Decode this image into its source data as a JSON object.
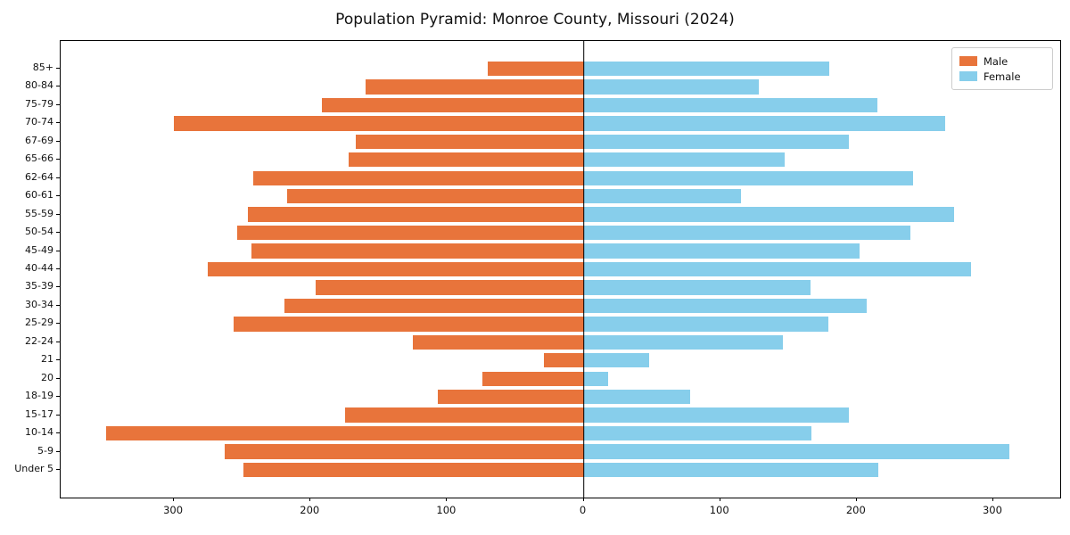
{
  "title": "Population Pyramid: Monroe County, Missouri (2024)",
  "legend": {
    "male_label": "Male",
    "female_label": "Female"
  },
  "colors": {
    "male": "#e8743b",
    "female": "#87ceeb",
    "axis": "#000000"
  },
  "chart_data": {
    "type": "bar",
    "subtype": "population-pyramid",
    "orientation": "horizontal",
    "title": "Population Pyramid: Monroe County, Missouri (2024)",
    "categories": [
      "85+",
      "80-84",
      "75-79",
      "70-74",
      "67-69",
      "65-66",
      "62-64",
      "60-61",
      "55-59",
      "50-54",
      "45-49",
      "40-44",
      "35-39",
      "30-34",
      "25-29",
      "22-24",
      "21",
      "20",
      "18-19",
      "15-17",
      "10-14",
      "5-9",
      "Under 5"
    ],
    "series": [
      {
        "name": "Male",
        "side": "left",
        "color": "#e8743b",
        "values": [
          70,
          160,
          192,
          300,
          167,
          172,
          242,
          217,
          246,
          254,
          243,
          275,
          196,
          219,
          256,
          125,
          29,
          74,
          107,
          175,
          350,
          263,
          249
        ]
      },
      {
        "name": "Female",
        "side": "right",
        "color": "#87ceeb",
        "values": [
          180,
          128,
          215,
          265,
          194,
          147,
          241,
          115,
          271,
          239,
          202,
          284,
          166,
          207,
          179,
          146,
          48,
          18,
          78,
          194,
          167,
          312,
          216
        ]
      }
    ],
    "xlim": [
      -383,
      349
    ],
    "x_ticks": [
      -300,
      -200,
      -100,
      0,
      100,
      200,
      300
    ],
    "x_tick_labels": [
      "300",
      "200",
      "100",
      "0",
      "100",
      "200",
      "300"
    ],
    "legend_position": "upper right",
    "grid": false
  }
}
